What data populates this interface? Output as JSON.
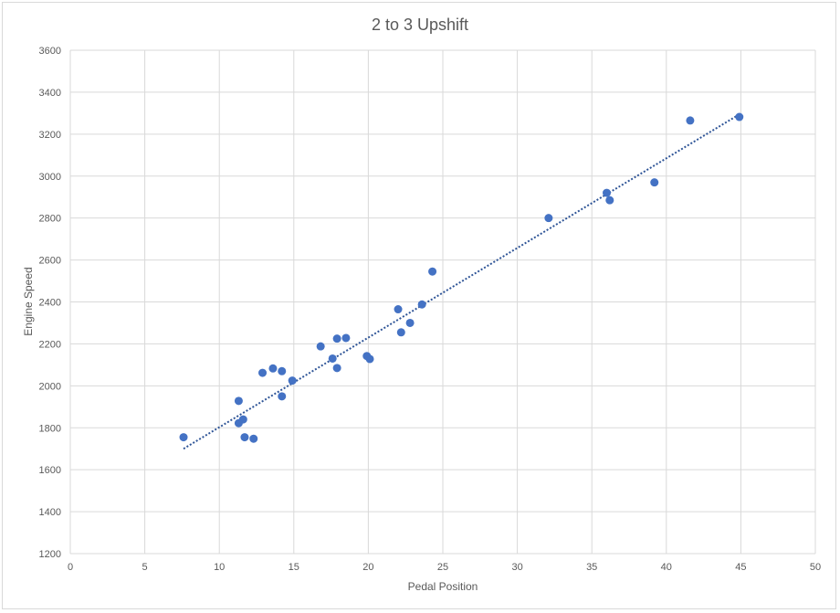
{
  "chart_data": {
    "type": "scatter",
    "title": "2 to 3 Upshift",
    "xlabel": "Pedal Position",
    "ylabel": "Engine Speed",
    "xlim": [
      0,
      50
    ],
    "ylim": [
      1200,
      3600
    ],
    "xticks": [
      0,
      5,
      10,
      15,
      20,
      25,
      30,
      35,
      40,
      45,
      50
    ],
    "yticks": [
      1200,
      1400,
      1600,
      1800,
      2000,
      2200,
      2400,
      2600,
      2800,
      3000,
      3200,
      3400,
      3600
    ],
    "grid": true,
    "legend": "none",
    "marker_color": "#4472C4",
    "trendline": {
      "type": "linear",
      "style": "dotted",
      "color": "#2F5597",
      "start": [
        7.6,
        1700
      ],
      "end": [
        44.8,
        3290
      ]
    },
    "points": [
      [
        7.6,
        1755
      ],
      [
        11.3,
        1928
      ],
      [
        11.3,
        1822
      ],
      [
        11.6,
        1840
      ],
      [
        11.7,
        1755
      ],
      [
        12.3,
        1748
      ],
      [
        12.9,
        2062
      ],
      [
        13.6,
        2083
      ],
      [
        14.2,
        2070
      ],
      [
        14.2,
        1950
      ],
      [
        14.9,
        2025
      ],
      [
        16.8,
        2188
      ],
      [
        17.6,
        2130
      ],
      [
        17.9,
        2225
      ],
      [
        17.9,
        2085
      ],
      [
        18.5,
        2228
      ],
      [
        19.9,
        2142
      ],
      [
        20.1,
        2128
      ],
      [
        22.0,
        2365
      ],
      [
        22.2,
        2255
      ],
      [
        22.8,
        2300
      ],
      [
        23.6,
        2388
      ],
      [
        24.3,
        2545
      ],
      [
        32.1,
        2800
      ],
      [
        36.0,
        2920
      ],
      [
        36.2,
        2885
      ],
      [
        39.2,
        2970
      ],
      [
        41.6,
        3265
      ],
      [
        44.9,
        3282
      ]
    ]
  }
}
